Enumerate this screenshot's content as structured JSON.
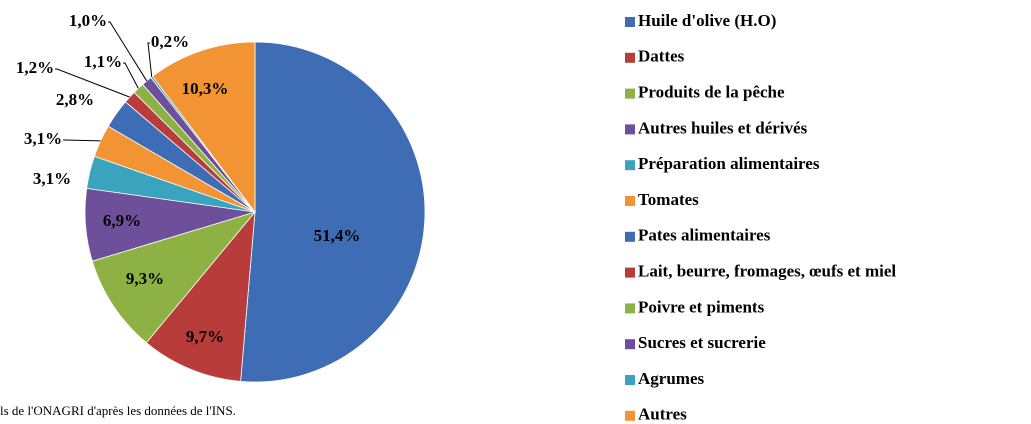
{
  "chart_data": {
    "type": "pie",
    "categories": [
      "Huile d'olive (H.O)",
      "Dattes",
      "Produits de la pêche",
      "Autres huiles et dérivés",
      "Préparation alimentaires",
      "Tomates",
      "Pates alimentaires",
      "Lait, beurre, fromages, œufs et miel",
      "Poivre et piments",
      "Sucres et sucrerie",
      "Agrumes",
      "Autres"
    ],
    "values": [
      51.4,
      9.7,
      9.3,
      6.9,
      3.1,
      3.1,
      2.8,
      1.2,
      1.1,
      1.0,
      0.2,
      10.3
    ],
    "value_labels": [
      "51,4%",
      "9,7%",
      "9,3%",
      "6,9%",
      "3,1%",
      "3,1%",
      "2,8%",
      "1,2%",
      "1,1%",
      "1,0%",
      "0,2%",
      "10,3%"
    ],
    "colors": [
      "#3e6db5",
      "#b83c3a",
      "#8db243",
      "#6e4f9a",
      "#3aa3bd",
      "#f29433",
      "#3e6db5",
      "#b83c3a",
      "#8db243",
      "#6e4f9a",
      "#3aa3bd",
      "#f29433"
    ],
    "legend": "right",
    "source": "ls de l'ONAGRI  d'après les données de l'INS."
  }
}
